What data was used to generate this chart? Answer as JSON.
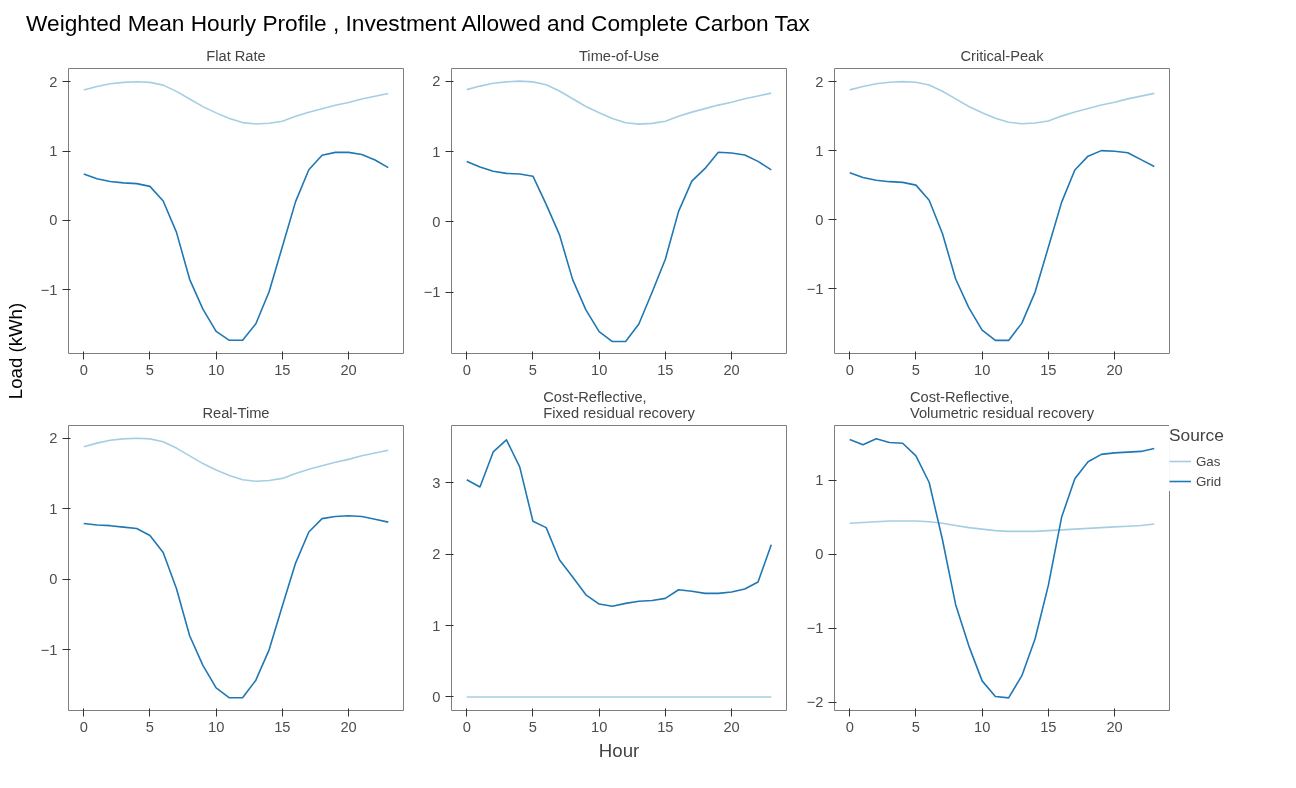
{
  "chart_data": [
    {
      "type": "line",
      "title": "Flat Rate",
      "annotations": [
        "Weighted Mean Hourly Profile , Investment Allowed and Complete Carbon Tax"
      ],
      "ylabel": "Load (kWh)",
      "x": [
        0,
        1,
        2,
        3,
        4,
        5,
        6,
        7,
        8,
        9,
        10,
        11,
        12,
        13,
        14,
        15,
        16,
        17,
        18,
        19,
        20,
        21,
        22,
        23
      ],
      "xlim": [
        -1.15,
        24.15
      ],
      "xticks": [
        0,
        5,
        10,
        15,
        20
      ],
      "ylim": [
        -1.92,
        2.19
      ],
      "yticks": [
        -1,
        0,
        1,
        2
      ],
      "grid": false,
      "series": [
        {
          "color": "#a6cee3",
          "values": [
            1.88,
            1.93,
            1.97,
            1.99,
            2.0,
            1.99,
            1.95,
            1.86,
            1.75,
            1.64,
            1.55,
            1.47,
            1.41,
            1.39,
            1.4,
            1.43,
            1.5,
            1.56,
            1.61,
            1.66,
            1.7,
            1.75,
            1.79,
            1.83
          ]
        },
        {
          "color": "#1f78b4",
          "values": [
            0.67,
            0.6,
            0.56,
            0.54,
            0.53,
            0.49,
            0.28,
            -0.17,
            -0.85,
            -1.28,
            -1.6,
            -1.73,
            -1.73,
            -1.49,
            -1.03,
            -0.38,
            0.27,
            0.73,
            0.94,
            0.98,
            0.98,
            0.95,
            0.87,
            0.76
          ]
        }
      ]
    },
    {
      "type": "line",
      "title": "Time-of-Use",
      "x": [
        0,
        1,
        2,
        3,
        4,
        5,
        6,
        7,
        8,
        9,
        10,
        11,
        12,
        13,
        14,
        15,
        16,
        17,
        18,
        19,
        20,
        21,
        22,
        23
      ],
      "xlim": [
        -1.15,
        24.15
      ],
      "xticks": [
        0,
        5,
        10,
        15,
        20
      ],
      "ylim": [
        -1.87,
        2.18
      ],
      "yticks": [
        -1,
        0,
        1,
        2
      ],
      "grid": false,
      "series": [
        {
          "color": "#a6cee3",
          "values": [
            1.88,
            1.93,
            1.97,
            1.99,
            2.0,
            1.99,
            1.95,
            1.86,
            1.75,
            1.64,
            1.55,
            1.47,
            1.41,
            1.39,
            1.4,
            1.43,
            1.5,
            1.56,
            1.61,
            1.66,
            1.7,
            1.75,
            1.79,
            1.83
          ]
        },
        {
          "color": "#1f78b4",
          "values": [
            0.86,
            0.78,
            0.72,
            0.69,
            0.68,
            0.65,
            0.25,
            -0.18,
            -0.82,
            -1.25,
            -1.56,
            -1.7,
            -1.7,
            -1.45,
            -1.0,
            -0.53,
            0.15,
            0.58,
            0.76,
            0.99,
            0.98,
            0.95,
            0.86,
            0.74
          ]
        }
      ]
    },
    {
      "type": "line",
      "title": "Critical-Peak",
      "x": [
        0,
        1,
        2,
        3,
        4,
        5,
        6,
        7,
        8,
        9,
        10,
        11,
        12,
        13,
        14,
        15,
        16,
        17,
        18,
        19,
        20,
        21,
        22,
        23
      ],
      "xlim": [
        -1.15,
        24.15
      ],
      "xticks": [
        0,
        5,
        10,
        15,
        20
      ],
      "ylim": [
        -1.94,
        2.19
      ],
      "yticks": [
        -1,
        0,
        1,
        2
      ],
      "grid": false,
      "series": [
        {
          "color": "#a6cee3",
          "values": [
            1.88,
            1.93,
            1.97,
            1.99,
            2.0,
            1.99,
            1.95,
            1.86,
            1.75,
            1.64,
            1.55,
            1.47,
            1.41,
            1.39,
            1.4,
            1.43,
            1.5,
            1.56,
            1.61,
            1.66,
            1.7,
            1.75,
            1.79,
            1.83
          ]
        },
        {
          "color": "#1f78b4",
          "values": [
            0.68,
            0.61,
            0.57,
            0.55,
            0.54,
            0.5,
            0.28,
            -0.2,
            -0.86,
            -1.28,
            -1.6,
            -1.75,
            -1.75,
            -1.5,
            -1.05,
            -0.4,
            0.25,
            0.72,
            0.92,
            1.0,
            0.99,
            0.97,
            0.87,
            0.77
          ]
        }
      ]
    },
    {
      "type": "line",
      "title": "Real-Time",
      "x": [
        0,
        1,
        2,
        3,
        4,
        5,
        6,
        7,
        8,
        9,
        10,
        11,
        12,
        13,
        14,
        15,
        16,
        17,
        18,
        19,
        20,
        21,
        22,
        23
      ],
      "xlim": [
        -1.15,
        24.15
      ],
      "xticks": [
        0,
        5,
        10,
        15,
        20
      ],
      "ylim": [
        -1.86,
        2.18
      ],
      "yticks": [
        -1,
        0,
        1,
        2
      ],
      "grid": false,
      "series": [
        {
          "color": "#a6cee3",
          "values": [
            1.88,
            1.93,
            1.97,
            1.99,
            2.0,
            1.99,
            1.95,
            1.86,
            1.75,
            1.64,
            1.55,
            1.47,
            1.41,
            1.39,
            1.4,
            1.43,
            1.5,
            1.56,
            1.61,
            1.66,
            1.7,
            1.75,
            1.79,
            1.83
          ]
        },
        {
          "color": "#1f78b4",
          "values": [
            0.79,
            0.77,
            0.76,
            0.74,
            0.72,
            0.62,
            0.38,
            -0.13,
            -0.8,
            -1.22,
            -1.54,
            -1.68,
            -1.68,
            -1.43,
            -1.0,
            -0.38,
            0.23,
            0.67,
            0.86,
            0.89,
            0.9,
            0.89,
            0.85,
            0.81
          ]
        }
      ]
    },
    {
      "type": "line",
      "title": "Cost-Reflective,\nFixed residual recovery",
      "xlabel": "Hour",
      "x": [
        0,
        1,
        2,
        3,
        4,
        5,
        6,
        7,
        8,
        9,
        10,
        11,
        12,
        13,
        14,
        15,
        16,
        17,
        18,
        19,
        20,
        21,
        22,
        23
      ],
      "xlim": [
        -1.15,
        24.15
      ],
      "xticks": [
        0,
        5,
        10,
        15,
        20
      ],
      "ylim": [
        -0.19,
        3.8
      ],
      "yticks": [
        0,
        1,
        2,
        3
      ],
      "grid": false,
      "series": [
        {
          "color": "#a6cee3",
          "values": [
            0,
            0,
            0,
            0,
            0,
            0,
            0,
            0,
            0,
            0,
            0,
            0,
            0,
            0,
            0,
            0,
            0,
            0,
            0,
            0,
            0,
            0,
            0,
            0
          ]
        },
        {
          "color": "#1f78b4",
          "values": [
            3.04,
            2.94,
            3.43,
            3.6,
            3.22,
            2.46,
            2.37,
            1.92,
            1.68,
            1.43,
            1.3,
            1.27,
            1.31,
            1.34,
            1.35,
            1.38,
            1.5,
            1.48,
            1.45,
            1.45,
            1.47,
            1.51,
            1.61,
            2.13
          ]
        }
      ]
    },
    {
      "type": "line",
      "title": "Cost-Reflective,\nVolumetric residual recovery",
      "legend": "right",
      "legend_title": "Source",
      "x": [
        0,
        1,
        2,
        3,
        4,
        5,
        6,
        7,
        8,
        9,
        10,
        11,
        12,
        13,
        14,
        15,
        16,
        17,
        18,
        19,
        20,
        21,
        22,
        23
      ],
      "xlim": [
        -1.15,
        24.15
      ],
      "xticks": [
        0,
        5,
        10,
        15,
        20
      ],
      "ylim": [
        -2.11,
        1.74
      ],
      "yticks": [
        -2,
        -1,
        0,
        1
      ],
      "grid": false,
      "series": [
        {
          "name": "Gas",
          "color": "#a6cee3",
          "values": [
            0.42,
            0.43,
            0.44,
            0.45,
            0.45,
            0.45,
            0.44,
            0.42,
            0.39,
            0.36,
            0.34,
            0.32,
            0.31,
            0.31,
            0.31,
            0.32,
            0.33,
            0.34,
            0.35,
            0.36,
            0.37,
            0.38,
            0.39,
            0.41
          ]
        },
        {
          "name": "Grid",
          "color": "#1f78b4",
          "values": [
            1.55,
            1.48,
            1.56,
            1.51,
            1.5,
            1.33,
            0.97,
            0.2,
            -0.68,
            -1.24,
            -1.71,
            -1.92,
            -1.94,
            -1.64,
            -1.14,
            -0.42,
            0.5,
            1.02,
            1.25,
            1.35,
            1.37,
            1.38,
            1.39,
            1.43
          ]
        }
      ]
    }
  ]
}
